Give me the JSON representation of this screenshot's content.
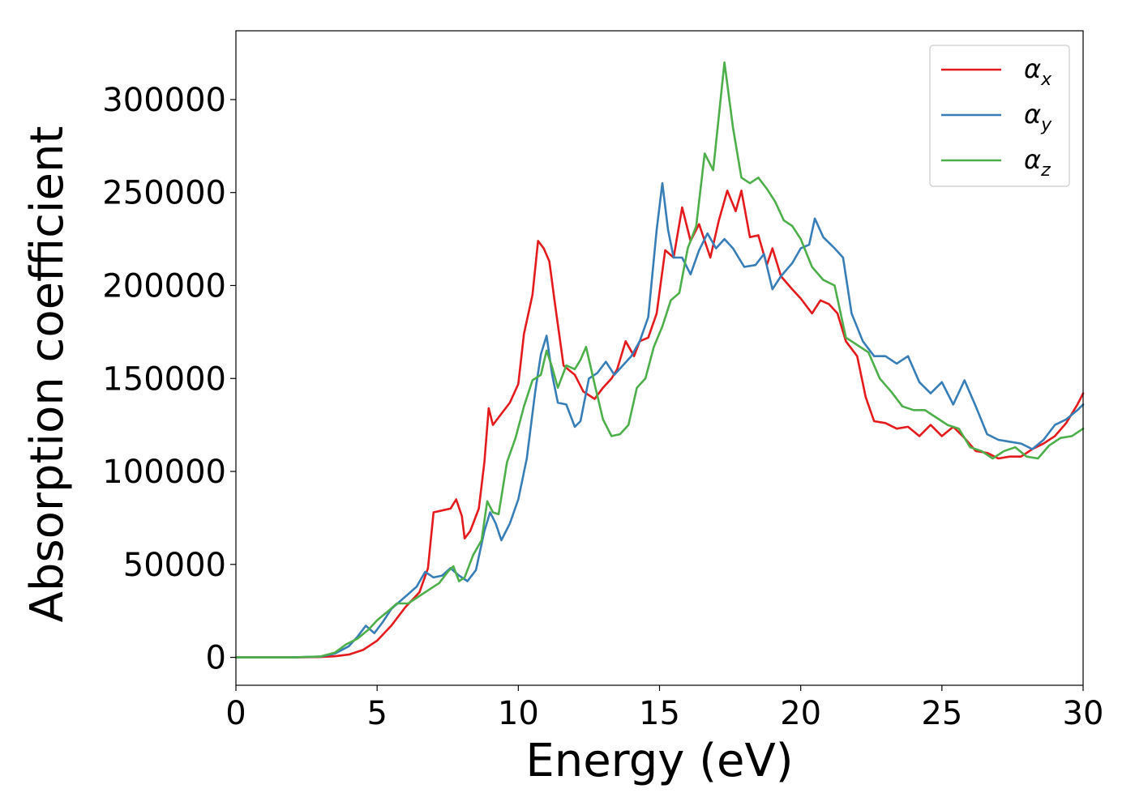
{
  "chart_data": {
    "type": "line",
    "title": "",
    "xlabel": "Energy (eV)",
    "ylabel": "Absorption coefficient",
    "xlim": [
      0,
      30
    ],
    "ylim": [
      -15000,
      337000
    ],
    "xticks": [
      0,
      5,
      10,
      15,
      20,
      25,
      30
    ],
    "yticks": [
      0,
      50000,
      100000,
      150000,
      200000,
      250000,
      300000
    ],
    "grid": false,
    "legend_position": "top-right",
    "series": [
      {
        "name": "α_x",
        "label_main": "α",
        "label_sub": "x",
        "color": "#e41a1c",
        "points": [
          [
            0,
            0
          ],
          [
            2,
            0
          ],
          [
            3,
            200
          ],
          [
            3.5,
            600
          ],
          [
            4,
            1500
          ],
          [
            4.5,
            4000
          ],
          [
            5,
            9000
          ],
          [
            5.5,
            17000
          ],
          [
            6,
            27000
          ],
          [
            6.5,
            35000
          ],
          [
            6.8,
            48000
          ],
          [
            7,
            78000
          ],
          [
            7.3,
            79000
          ],
          [
            7.6,
            80000
          ],
          [
            7.8,
            85000
          ],
          [
            8,
            76000
          ],
          [
            8.1,
            64000
          ],
          [
            8.3,
            68000
          ],
          [
            8.6,
            80000
          ],
          [
            8.8,
            105000
          ],
          [
            8.95,
            134000
          ],
          [
            9.1,
            125000
          ],
          [
            9.4,
            131000
          ],
          [
            9.7,
            137000
          ],
          [
            10,
            147000
          ],
          [
            10.2,
            174000
          ],
          [
            10.5,
            195000
          ],
          [
            10.7,
            224000
          ],
          [
            10.9,
            220000
          ],
          [
            11.1,
            213000
          ],
          [
            11.3,
            190000
          ],
          [
            11.6,
            157000
          ],
          [
            12,
            152000
          ],
          [
            12.3,
            143000
          ],
          [
            12.7,
            139000
          ],
          [
            13,
            145000
          ],
          [
            13.3,
            150000
          ],
          [
            13.5,
            155000
          ],
          [
            13.8,
            170000
          ],
          [
            14.1,
            162000
          ],
          [
            14.3,
            170000
          ],
          [
            14.6,
            172000
          ],
          [
            14.9,
            185000
          ],
          [
            15.2,
            219000
          ],
          [
            15.5,
            215000
          ],
          [
            15.8,
            242000
          ],
          [
            16.1,
            224000
          ],
          [
            16.4,
            233000
          ],
          [
            16.8,
            215000
          ],
          [
            17.1,
            235000
          ],
          [
            17.4,
            251000
          ],
          [
            17.7,
            240000
          ],
          [
            17.9,
            251000
          ],
          [
            18.2,
            226000
          ],
          [
            18.5,
            227000
          ],
          [
            18.8,
            211000
          ],
          [
            19,
            220000
          ],
          [
            19.3,
            205000
          ],
          [
            19.7,
            198000
          ],
          [
            20,
            193000
          ],
          [
            20.4,
            185000
          ],
          [
            20.7,
            192000
          ],
          [
            21,
            190000
          ],
          [
            21.3,
            185000
          ],
          [
            21.6,
            170000
          ],
          [
            22,
            162000
          ],
          [
            22.3,
            140000
          ],
          [
            22.6,
            127000
          ],
          [
            23,
            126000
          ],
          [
            23.4,
            123000
          ],
          [
            23.8,
            124000
          ],
          [
            24.2,
            119000
          ],
          [
            24.6,
            125000
          ],
          [
            25,
            119000
          ],
          [
            25.4,
            124000
          ],
          [
            25.8,
            118000
          ],
          [
            26.2,
            111000
          ],
          [
            26.6,
            110000
          ],
          [
            27,
            107000
          ],
          [
            27.4,
            108000
          ],
          [
            27.8,
            108000
          ],
          [
            28.2,
            112000
          ],
          [
            28.6,
            115000
          ],
          [
            29,
            119000
          ],
          [
            29.4,
            126000
          ],
          [
            29.8,
            136000
          ],
          [
            30,
            142000
          ]
        ]
      },
      {
        "name": "α_y",
        "label_main": "α",
        "label_sub": "y",
        "color": "#377eb8",
        "points": [
          [
            0,
            0
          ],
          [
            2,
            0
          ],
          [
            3,
            400
          ],
          [
            3.5,
            2000
          ],
          [
            4,
            6000
          ],
          [
            4.3,
            11000
          ],
          [
            4.6,
            17000
          ],
          [
            4.9,
            13000
          ],
          [
            5.2,
            19000
          ],
          [
            5.5,
            26000
          ],
          [
            5.8,
            30000
          ],
          [
            6.1,
            34000
          ],
          [
            6.4,
            38000
          ],
          [
            6.7,
            46000
          ],
          [
            7,
            43000
          ],
          [
            7.3,
            44000
          ],
          [
            7.6,
            48000
          ],
          [
            7.9,
            44000
          ],
          [
            8.2,
            41000
          ],
          [
            8.5,
            47000
          ],
          [
            8.8,
            68000
          ],
          [
            9,
            78000
          ],
          [
            9.2,
            72000
          ],
          [
            9.4,
            63000
          ],
          [
            9.7,
            72000
          ],
          [
            10,
            85000
          ],
          [
            10.3,
            107000
          ],
          [
            10.6,
            143000
          ],
          [
            10.8,
            163000
          ],
          [
            11,
            173000
          ],
          [
            11.2,
            152000
          ],
          [
            11.4,
            137000
          ],
          [
            11.7,
            136000
          ],
          [
            12,
            124000
          ],
          [
            12.2,
            127000
          ],
          [
            12.5,
            150000
          ],
          [
            12.8,
            153000
          ],
          [
            13.1,
            159000
          ],
          [
            13.4,
            152000
          ],
          [
            13.7,
            157000
          ],
          [
            14,
            162000
          ],
          [
            14.3,
            170000
          ],
          [
            14.6,
            183000
          ],
          [
            14.9,
            230000
          ],
          [
            15.1,
            255000
          ],
          [
            15.3,
            230000
          ],
          [
            15.5,
            215000
          ],
          [
            15.8,
            215000
          ],
          [
            16.1,
            206000
          ],
          [
            16.4,
            219000
          ],
          [
            16.7,
            228000
          ],
          [
            17,
            220000
          ],
          [
            17.3,
            225000
          ],
          [
            17.6,
            220000
          ],
          [
            18,
            210000
          ],
          [
            18.4,
            211000
          ],
          [
            18.7,
            217000
          ],
          [
            19,
            198000
          ],
          [
            19.3,
            205000
          ],
          [
            19.7,
            212000
          ],
          [
            20,
            220000
          ],
          [
            20.3,
            222000
          ],
          [
            20.5,
            236000
          ],
          [
            20.8,
            226000
          ],
          [
            21.2,
            220000
          ],
          [
            21.5,
            215000
          ],
          [
            21.8,
            185000
          ],
          [
            22.2,
            170000
          ],
          [
            22.6,
            162000
          ],
          [
            23,
            162000
          ],
          [
            23.4,
            158000
          ],
          [
            23.8,
            162000
          ],
          [
            24.2,
            148000
          ],
          [
            24.6,
            142000
          ],
          [
            25,
            148000
          ],
          [
            25.4,
            136000
          ],
          [
            25.8,
            149000
          ],
          [
            26.2,
            135000
          ],
          [
            26.6,
            120000
          ],
          [
            27,
            117000
          ],
          [
            27.4,
            116000
          ],
          [
            27.8,
            115000
          ],
          [
            28.2,
            112000
          ],
          [
            28.6,
            117000
          ],
          [
            29,
            125000
          ],
          [
            29.4,
            128000
          ],
          [
            29.8,
            133000
          ],
          [
            30,
            136000
          ]
        ]
      },
      {
        "name": "α_z",
        "label_main": "α",
        "label_sub": "z",
        "color": "#4daf4a",
        "points": [
          [
            0,
            0
          ],
          [
            2,
            0
          ],
          [
            3,
            500
          ],
          [
            3.5,
            2500
          ],
          [
            3.9,
            7000
          ],
          [
            4.3,
            10000
          ],
          [
            4.7,
            15000
          ],
          [
            5,
            20000
          ],
          [
            5.4,
            25000
          ],
          [
            5.7,
            29000
          ],
          [
            6.1,
            29000
          ],
          [
            6.5,
            33000
          ],
          [
            6.9,
            37000
          ],
          [
            7.2,
            40000
          ],
          [
            7.5,
            46000
          ],
          [
            7.7,
            49000
          ],
          [
            7.9,
            41000
          ],
          [
            8.1,
            43000
          ],
          [
            8.4,
            55000
          ],
          [
            8.7,
            63000
          ],
          [
            8.9,
            84000
          ],
          [
            9.1,
            78000
          ],
          [
            9.3,
            77000
          ],
          [
            9.6,
            105000
          ],
          [
            9.9,
            118000
          ],
          [
            10.2,
            135000
          ],
          [
            10.5,
            149000
          ],
          [
            10.8,
            152000
          ],
          [
            11,
            165000
          ],
          [
            11.2,
            156000
          ],
          [
            11.4,
            145000
          ],
          [
            11.7,
            157000
          ],
          [
            12,
            155000
          ],
          [
            12.2,
            160000
          ],
          [
            12.4,
            167000
          ],
          [
            12.7,
            147000
          ],
          [
            13,
            128000
          ],
          [
            13.3,
            119000
          ],
          [
            13.6,
            120000
          ],
          [
            13.9,
            125000
          ],
          [
            14.2,
            145000
          ],
          [
            14.5,
            150000
          ],
          [
            14.8,
            167000
          ],
          [
            15.1,
            178000
          ],
          [
            15.4,
            192000
          ],
          [
            15.7,
            196000
          ],
          [
            16,
            220000
          ],
          [
            16.3,
            232000
          ],
          [
            16.6,
            271000
          ],
          [
            16.9,
            262000
          ],
          [
            17.3,
            320000
          ],
          [
            17.6,
            285000
          ],
          [
            17.9,
            258000
          ],
          [
            18.2,
            255000
          ],
          [
            18.5,
            258000
          ],
          [
            18.8,
            252000
          ],
          [
            19.1,
            245000
          ],
          [
            19.4,
            235000
          ],
          [
            19.7,
            232000
          ],
          [
            20,
            225000
          ],
          [
            20.4,
            210000
          ],
          [
            20.8,
            203000
          ],
          [
            21.2,
            200000
          ],
          [
            21.6,
            172000
          ],
          [
            22,
            168000
          ],
          [
            22.4,
            164000
          ],
          [
            22.8,
            150000
          ],
          [
            23.2,
            143000
          ],
          [
            23.6,
            135000
          ],
          [
            24,
            133000
          ],
          [
            24.4,
            133000
          ],
          [
            24.8,
            129000
          ],
          [
            25.2,
            125000
          ],
          [
            25.6,
            123000
          ],
          [
            26,
            113000
          ],
          [
            26.4,
            111000
          ],
          [
            26.8,
            107000
          ],
          [
            27.2,
            111000
          ],
          [
            27.6,
            113000
          ],
          [
            28,
            108000
          ],
          [
            28.4,
            107000
          ],
          [
            28.8,
            114000
          ],
          [
            29.2,
            118000
          ],
          [
            29.6,
            119000
          ],
          [
            30,
            123000
          ]
        ]
      }
    ]
  }
}
